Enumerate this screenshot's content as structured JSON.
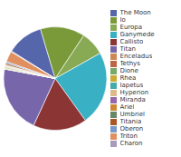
{
  "chart_data": {
    "type": "pie",
    "categories": [
      "The Moon",
      "Io",
      "Europa",
      "Ganymede",
      "Callisto",
      "Titan",
      "Enceladus",
      "Tethys",
      "Dione",
      "Rhea",
      "Iapetus",
      "Hyperion",
      "Miranda",
      "Ariel",
      "Umbriel",
      "Titania",
      "Oberon",
      "Triton",
      "Charon"
    ],
    "values": [
      734.9,
      893.2,
      480.0,
      1481.9,
      1075.9,
      1345.2,
      1.08,
      6.17,
      10.95,
      23.07,
      18.06,
      0.56,
      0.659,
      13.53,
      11.72,
      35.27,
      30.14,
      214.0,
      15.2
    ],
    "colors": [
      "#5566aa",
      "#7a9a3a",
      "#88aa55",
      "#3ab0c5",
      "#8b3535",
      "#7766aa",
      "#cc8855",
      "#bb6644",
      "#77aa66",
      "#ccaa33",
      "#44aaaa",
      "#ddbb88",
      "#9966aa",
      "#cc8833",
      "#668866",
      "#aa5522",
      "#7799cc",
      "#e09060",
      "#aa99bb"
    ],
    "legend": "right"
  }
}
